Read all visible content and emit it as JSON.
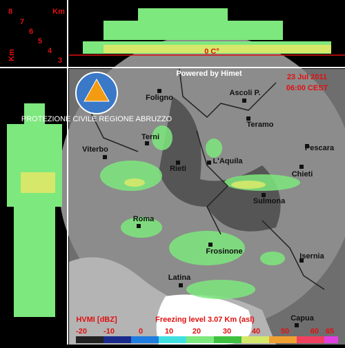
{
  "top_panel": {
    "unit": "Km",
    "heights": [
      8,
      7,
      6,
      5,
      4,
      3
    ],
    "unit_vertical": "Km",
    "freezing_label": "0 C°"
  },
  "map": {
    "credit": "Powered by Himet",
    "date": "23 Jul 2011",
    "time": "06:00 CEST",
    "logo": "PROTEZIONE CIVILE REGIONE ABRUZZO",
    "cities": [
      "Foligno",
      "Ascoli P.",
      "Teramo",
      "Pescara",
      "Terni",
      "Viterbo",
      "Rieti",
      "L'Aquila",
      "Chieti",
      "Sulmona",
      "Roma",
      "Frosinone",
      "Isernia",
      "Latina",
      "Capua"
    ],
    "legend_title": "HVMI [dBZ]",
    "freezing_level": "Freezing level  3.07 Km (asl)",
    "scale": [
      -20,
      -10,
      0,
      10,
      20,
      30,
      40,
      50,
      60,
      65
    ]
  }
}
